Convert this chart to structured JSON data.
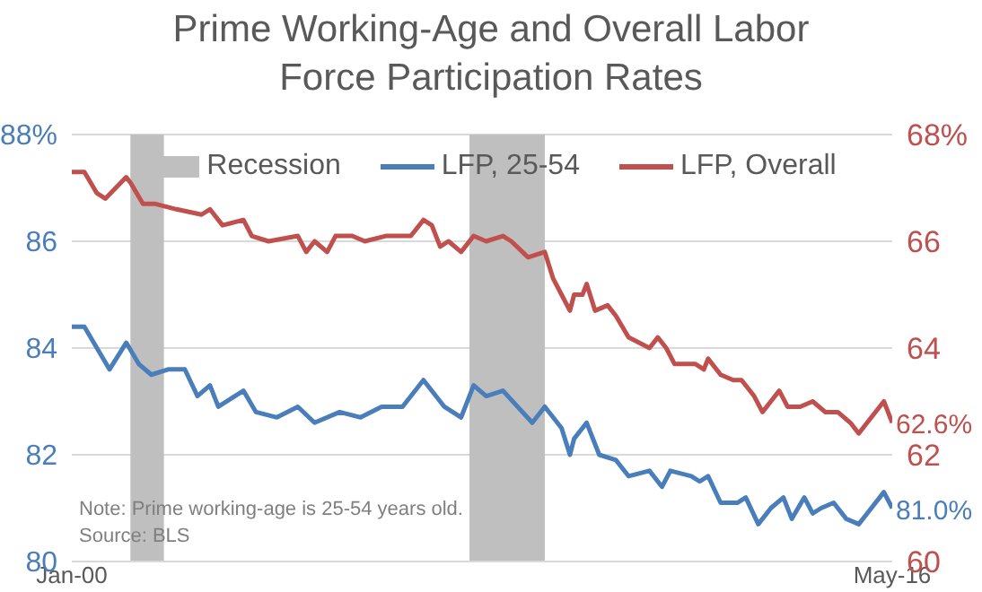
{
  "chart_data": {
    "type": "line",
    "title": "Prime Working-Age and Overall Labor Force Participation Rates",
    "xlim": [
      "2000-01",
      "2016-05"
    ],
    "xticks": [
      {
        "value": "2000-01",
        "label": "Jan-00"
      },
      {
        "value": "2016-05",
        "label": "May-16"
      }
    ],
    "ylim": [
      80,
      88
    ],
    "yticks": [
      80,
      82,
      84,
      86,
      {
        "value": 88,
        "label": "88%"
      }
    ],
    "y2lim": [
      60,
      68
    ],
    "y2ticks": [
      60,
      62,
      64,
      66,
      {
        "value": 68,
        "label": "68%"
      }
    ],
    "grid": "y",
    "legend": "top",
    "marker": "none",
    "line_style": "solid",
    "bands": [
      {
        "axis": "x",
        "from": "2001-03",
        "to": "2001-11",
        "label": "Recession",
        "color": "#bfbfbf"
      },
      {
        "axis": "x",
        "from": "2007-12",
        "to": "2009-06",
        "color": "#bfbfbf"
      }
    ],
    "annotations": [
      "Note: Prime working-age is 25-54 years old.",
      "Source: BLS"
    ],
    "series": [
      {
        "name": "LFP, 25-54",
        "color": "#4a7ebb",
        "x": [
          "2000-01",
          "2000-04",
          "2000-10",
          "2001-02",
          "2001-05",
          "2001-08",
          "2001-12",
          "2002-04",
          "2002-07",
          "2002-10",
          "2002-12",
          "2003-06",
          "2003-09",
          "2004-02",
          "2004-07",
          "2004-11",
          "2005-05",
          "2005-10",
          "2006-03",
          "2006-08",
          "2007-01",
          "2007-06",
          "2007-10",
          "2008-01",
          "2008-04",
          "2008-08",
          "2009-03",
          "2009-06",
          "2009-10",
          "2009-12",
          "2010-01",
          "2010-04",
          "2010-07",
          "2010-11",
          "2011-02",
          "2011-07",
          "2011-10",
          "2011-12",
          "2012-05",
          "2012-07",
          "2012-09",
          "2012-12",
          "2013-04",
          "2013-06",
          "2013-09",
          "2013-12",
          "2014-03",
          "2014-05",
          "2014-08",
          "2014-10",
          "2014-12",
          "2015-03",
          "2015-06",
          "2015-09",
          "2015-11",
          "2016-03",
          "2016-05"
        ],
        "values": [
          84.4,
          84.4,
          83.6,
          84.1,
          83.7,
          83.5,
          83.6,
          83.6,
          83.1,
          83.3,
          82.9,
          83.2,
          82.8,
          82.7,
          82.9,
          82.6,
          82.8,
          82.7,
          82.9,
          82.9,
          83.4,
          82.9,
          82.7,
          83.3,
          83.1,
          83.2,
          82.6,
          82.9,
          82.5,
          82.0,
          82.3,
          82.6,
          82.0,
          81.9,
          81.6,
          81.7,
          81.4,
          81.7,
          81.6,
          81.5,
          81.6,
          81.1,
          81.1,
          81.2,
          80.7,
          81.0,
          81.2,
          80.8,
          81.2,
          80.9,
          81.0,
          81.1,
          80.8,
          80.7,
          80.9,
          81.3,
          81.0
        ],
        "value_labels": [
          null,
          null,
          null,
          null,
          null,
          null,
          null,
          null,
          null,
          null,
          null,
          null,
          null,
          null,
          null,
          null,
          null,
          null,
          null,
          null,
          null,
          null,
          null,
          null,
          null,
          null,
          null,
          null,
          null,
          null,
          null,
          null,
          null,
          null,
          null,
          null,
          null,
          null,
          null,
          null,
          null,
          null,
          null,
          null,
          null,
          null,
          null,
          null,
          null,
          null,
          null,
          null,
          null,
          null,
          null,
          null,
          "81.0%"
        ]
      },
      {
        "name": "LFP, Overall",
        "color": "#c0504d",
        "axis": "y2",
        "x": [
          "2000-01",
          "2000-04",
          "2000-07",
          "2000-09",
          "2001-02",
          "2001-03",
          "2001-06",
          "2001-09",
          "2002-02",
          "2002-08",
          "2002-10",
          "2003-01",
          "2003-06",
          "2003-08",
          "2003-12",
          "2004-07",
          "2004-09",
          "2004-11",
          "2005-02",
          "2005-04",
          "2005-08",
          "2005-11",
          "2006-04",
          "2006-10",
          "2007-01",
          "2007-03",
          "2007-05",
          "2007-07",
          "2007-10",
          "2008-01",
          "2008-04",
          "2008-08",
          "2008-10",
          "2009-02",
          "2009-06",
          "2009-08",
          "2009-10",
          "2009-12",
          "2010-01",
          "2010-03",
          "2010-04",
          "2010-06",
          "2010-09",
          "2010-11",
          "2011-02",
          "2011-07",
          "2011-09",
          "2011-11",
          "2012-01",
          "2012-06",
          "2012-08",
          "2012-09",
          "2012-12",
          "2013-03",
          "2013-05",
          "2013-08",
          "2013-10",
          "2013-12",
          "2014-02",
          "2014-04",
          "2014-07",
          "2014-10",
          "2015-01",
          "2015-04",
          "2015-07",
          "2015-09",
          "2015-11",
          "2016-03",
          "2016-05"
        ],
        "values": [
          67.3,
          67.3,
          66.9,
          66.8,
          67.2,
          67.1,
          66.7,
          66.7,
          66.6,
          66.5,
          66.6,
          66.3,
          66.4,
          66.1,
          66.0,
          66.1,
          65.8,
          66.0,
          65.8,
          66.1,
          66.1,
          66.0,
          66.1,
          66.1,
          66.4,
          66.3,
          65.9,
          66.0,
          65.8,
          66.1,
          66.0,
          66.1,
          66.0,
          65.7,
          65.8,
          65.3,
          65.0,
          64.7,
          65.0,
          65.0,
          65.2,
          64.7,
          64.8,
          64.6,
          64.2,
          64.0,
          64.2,
          64.0,
          63.7,
          63.7,
          63.6,
          63.8,
          63.5,
          63.4,
          63.4,
          63.1,
          62.8,
          63.0,
          63.2,
          62.9,
          62.9,
          63.0,
          62.8,
          62.8,
          62.6,
          62.4,
          62.6,
          63.0,
          62.6
        ],
        "value_labels": [
          null,
          null,
          null,
          null,
          null,
          null,
          null,
          null,
          null,
          null,
          null,
          null,
          null,
          null,
          null,
          null,
          null,
          null,
          null,
          null,
          null,
          null,
          null,
          null,
          null,
          null,
          null,
          null,
          null,
          null,
          null,
          null,
          null,
          null,
          null,
          null,
          null,
          null,
          null,
          null,
          null,
          null,
          null,
          null,
          null,
          null,
          null,
          null,
          null,
          null,
          null,
          null,
          null,
          null,
          null,
          null,
          null,
          null,
          null,
          null,
          null,
          null,
          null,
          null,
          null,
          null,
          null,
          null,
          "62.6%"
        ]
      }
    ]
  }
}
